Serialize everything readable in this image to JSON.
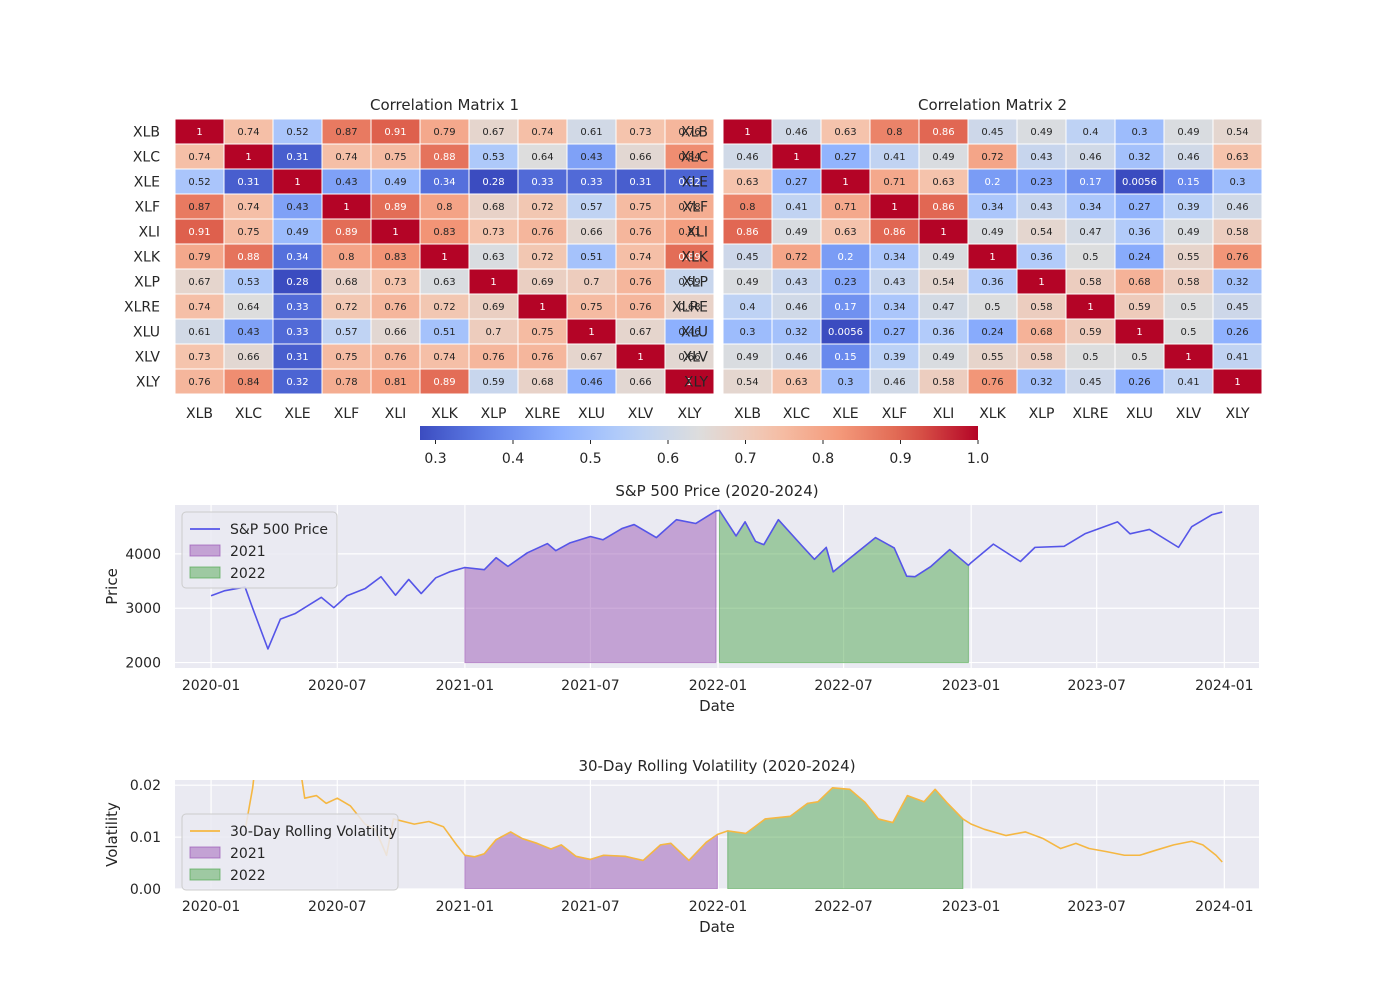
{
  "chart_data": [
    {
      "type": "heatmap",
      "title": "Correlation Matrix 1",
      "labels": [
        "XLB",
        "XLC",
        "XLE",
        "XLF",
        "XLI",
        "XLK",
        "XLP",
        "XLRE",
        "XLU",
        "XLV",
        "XLY"
      ],
      "values": [
        [
          1,
          0.74,
          0.52,
          0.87,
          0.91,
          0.79,
          0.67,
          0.74,
          0.61,
          0.73,
          0.76
        ],
        [
          0.74,
          1,
          0.31,
          0.74,
          0.75,
          0.88,
          0.53,
          0.64,
          0.43,
          0.66,
          0.84
        ],
        [
          0.52,
          0.31,
          1,
          0.43,
          0.49,
          0.34,
          0.28,
          0.33,
          0.33,
          0.31,
          0.32
        ],
        [
          0.87,
          0.74,
          0.43,
          1,
          0.89,
          0.8,
          0.68,
          0.72,
          0.57,
          0.75,
          0.78
        ],
        [
          0.91,
          0.75,
          0.49,
          0.89,
          1,
          0.83,
          0.73,
          0.76,
          0.66,
          0.76,
          0.81
        ],
        [
          0.79,
          0.88,
          0.34,
          0.8,
          0.83,
          1,
          0.63,
          0.72,
          0.51,
          0.74,
          0.89
        ],
        [
          0.67,
          0.53,
          0.28,
          0.68,
          0.73,
          0.63,
          1,
          0.69,
          0.7,
          0.76,
          0.59
        ],
        [
          0.74,
          0.64,
          0.33,
          0.72,
          0.76,
          0.72,
          0.69,
          1,
          0.75,
          0.76,
          0.68
        ],
        [
          0.61,
          0.43,
          0.33,
          0.57,
          0.66,
          0.51,
          0.7,
          0.75,
          1,
          0.67,
          0.46
        ],
        [
          0.73,
          0.66,
          0.31,
          0.75,
          0.76,
          0.74,
          0.76,
          0.76,
          0.67,
          1,
          0.66
        ],
        [
          0.76,
          0.84,
          0.32,
          0.78,
          0.81,
          0.89,
          0.59,
          0.68,
          0.46,
          0.66,
          1
        ]
      ],
      "colormap": "coolwarm",
      "vmin": 0.28,
      "vmax": 1.0
    },
    {
      "type": "heatmap",
      "title": "Correlation Matrix 2",
      "labels": [
        "XLB",
        "XLC",
        "XLE",
        "XLF",
        "XLI",
        "XLK",
        "XLP",
        "XLRE",
        "XLU",
        "XLV",
        "XLY"
      ],
      "values": [
        [
          1,
          0.46,
          0.63,
          0.8,
          0.86,
          0.45,
          0.49,
          0.4,
          0.3,
          0.49,
          0.54
        ],
        [
          0.46,
          1,
          0.27,
          0.41,
          0.49,
          0.72,
          0.43,
          0.46,
          0.32,
          0.46,
          0.63
        ],
        [
          0.63,
          0.27,
          1,
          0.71,
          0.63,
          0.2,
          0.23,
          0.17,
          0.0056,
          0.15,
          0.3
        ],
        [
          0.8,
          0.41,
          0.71,
          1,
          0.86,
          0.34,
          0.43,
          0.34,
          0.27,
          0.39,
          0.46
        ],
        [
          0.86,
          0.49,
          0.63,
          0.86,
          1,
          0.49,
          0.54,
          0.47,
          0.36,
          0.49,
          0.58
        ],
        [
          0.45,
          0.72,
          0.2,
          0.34,
          0.49,
          1,
          0.36,
          0.5,
          0.24,
          0.55,
          0.76
        ],
        [
          0.49,
          0.43,
          0.23,
          0.43,
          0.54,
          0.36,
          1,
          0.58,
          0.68,
          0.58,
          0.32
        ],
        [
          0.4,
          0.46,
          0.17,
          0.34,
          0.47,
          0.5,
          0.58,
          1,
          0.59,
          0.5,
          0.45
        ],
        [
          0.3,
          0.32,
          0.0056,
          0.27,
          0.36,
          0.24,
          0.68,
          0.59,
          1,
          0.5,
          0.26
        ],
        [
          0.49,
          0.46,
          0.15,
          0.39,
          0.49,
          0.55,
          0.58,
          0.5,
          0.5,
          1,
          0.41
        ],
        [
          0.54,
          0.63,
          0.3,
          0.46,
          0.58,
          0.76,
          0.32,
          0.45,
          0.26,
          0.41,
          1
        ]
      ],
      "colormap": "coolwarm",
      "vmin": 0.0056,
      "vmax": 1.0
    },
    {
      "type": "colorbar",
      "colormap": "coolwarm",
      "range": [
        0.28,
        1.0
      ],
      "ticks": [
        0.3,
        0.4,
        0.5,
        0.6,
        0.7,
        0.8,
        0.9,
        1.0
      ]
    },
    {
      "type": "area",
      "title": "S&P 500 Price (2020-2024)",
      "xlabel": "Date",
      "ylabel": "Price",
      "xlim": [
        "2019-11-10",
        "2024-02-20"
      ],
      "ylim": [
        1900,
        4900
      ],
      "xticks": [
        "2020-01",
        "2020-07",
        "2021-01",
        "2021-07",
        "2022-01",
        "2022-07",
        "2023-01",
        "2023-07",
        "2024-01"
      ],
      "yticks": [
        2000,
        3000,
        4000
      ],
      "grid": true,
      "legend": "upper-left",
      "fill_baseline": 2000,
      "series": [
        {
          "name": "S&P 500 Price",
          "color": "#5555e8",
          "points": [
            [
              "2020-01-01",
              3230
            ],
            [
              "2020-01-20",
              3320
            ],
            [
              "2020-02-19",
              3390
            ],
            [
              "2020-03-01",
              3000
            ],
            [
              "2020-03-23",
              2250
            ],
            [
              "2020-04-10",
              2800
            ],
            [
              "2020-05-01",
              2900
            ],
            [
              "2020-06-08",
              3200
            ],
            [
              "2020-06-26",
              3010
            ],
            [
              "2020-07-15",
              3230
            ],
            [
              "2020-08-10",
              3360
            ],
            [
              "2020-09-02",
              3580
            ],
            [
              "2020-09-23",
              3240
            ],
            [
              "2020-10-12",
              3530
            ],
            [
              "2020-10-30",
              3270
            ],
            [
              "2020-11-20",
              3560
            ],
            [
              "2020-12-10",
              3670
            ],
            [
              "2021-01-01",
              3750
            ],
            [
              "2021-01-29",
              3710
            ],
            [
              "2021-02-15",
              3930
            ],
            [
              "2021-03-04",
              3770
            ],
            [
              "2021-04-01",
              4020
            ],
            [
              "2021-04-30",
              4190
            ],
            [
              "2021-05-12",
              4060
            ],
            [
              "2021-06-01",
              4200
            ],
            [
              "2021-07-01",
              4320
            ],
            [
              "2021-07-19",
              4260
            ],
            [
              "2021-08-16",
              4470
            ],
            [
              "2021-09-02",
              4540
            ],
            [
              "2021-10-04",
              4300
            ],
            [
              "2021-11-02",
              4630
            ],
            [
              "2021-11-30",
              4560
            ],
            [
              "2021-12-29",
              4790
            ],
            [
              "2022-01-03",
              4800
            ],
            [
              "2022-01-27",
              4330
            ],
            [
              "2022-02-09",
              4590
            ],
            [
              "2022-02-24",
              4230
            ],
            [
              "2022-03-08",
              4170
            ],
            [
              "2022-03-29",
              4630
            ],
            [
              "2022-05-02",
              4150
            ],
            [
              "2022-05-20",
              3900
            ],
            [
              "2022-06-06",
              4120
            ],
            [
              "2022-06-16",
              3670
            ],
            [
              "2022-07-08",
              3900
            ],
            [
              "2022-08-16",
              4300
            ],
            [
              "2022-09-12",
              4110
            ],
            [
              "2022-09-30",
              3590
            ],
            [
              "2022-10-12",
              3580
            ],
            [
              "2022-11-04",
              3770
            ],
            [
              "2022-12-01",
              4080
            ],
            [
              "2022-12-28",
              3790
            ],
            [
              "2023-01-01",
              3840
            ],
            [
              "2023-02-02",
              4180
            ],
            [
              "2023-03-13",
              3860
            ],
            [
              "2023-04-03",
              4120
            ],
            [
              "2023-05-15",
              4140
            ],
            [
              "2023-06-14",
              4370
            ],
            [
              "2023-07-31",
              4590
            ],
            [
              "2023-08-18",
              4370
            ],
            [
              "2023-09-15",
              4450
            ],
            [
              "2023-10-27",
              4120
            ],
            [
              "2023-11-15",
              4500
            ],
            [
              "2023-12-14",
              4720
            ],
            [
              "2023-12-29",
              4770
            ]
          ]
        }
      ],
      "fills": [
        {
          "name": "2021",
          "color": "#9b59b6",
          "x0": "2021-01-01",
          "x1": "2021-12-31"
        },
        {
          "name": "2022",
          "color": "#52a852",
          "x0": "2022-01-01",
          "x1": "2022-12-31"
        }
      ]
    },
    {
      "type": "area",
      "title": "30-Day Rolling Volatility (2020-2024)",
      "xlabel": "Date",
      "ylabel": "Volatility",
      "xlim": [
        "2019-11-10",
        "2024-02-20"
      ],
      "ylim": [
        0,
        0.021
      ],
      "xticks": [
        "2020-01",
        "2020-07",
        "2021-01",
        "2021-07",
        "2022-01",
        "2022-07",
        "2023-01",
        "2023-07",
        "2024-01"
      ],
      "yticks": [
        "0.00",
        "0.01",
        "0.02"
      ],
      "grid": true,
      "legend": "center-left",
      "fill_baseline": 0,
      "series": [
        {
          "name": "30-Day Rolling Volatility",
          "color": "#f5b742",
          "points": [
            [
              "2020-02-20",
              0.012
            ],
            [
              "2020-03-01",
              0.0195
            ],
            [
              "2020-03-10",
              0.03
            ],
            [
              "2020-05-01",
              0.03
            ],
            [
              "2020-05-15",
              0.0175
            ],
            [
              "2020-06-01",
              0.018
            ],
            [
              "2020-06-15",
              0.0165
            ],
            [
              "2020-07-01",
              0.0175
            ],
            [
              "2020-07-20",
              0.016
            ],
            [
              "2020-08-10",
              0.0125
            ],
            [
              "2020-08-25",
              0.0115
            ],
            [
              "2020-09-10",
              0.0065
            ],
            [
              "2020-09-20",
              0.0135
            ],
            [
              "2020-10-20",
              0.0125
            ],
            [
              "2020-11-10",
              0.013
            ],
            [
              "2020-12-01",
              0.012
            ],
            [
              "2020-12-20",
              0.0085
            ],
            [
              "2021-01-01",
              0.0065
            ],
            [
              "2021-01-15",
              0.0062
            ],
            [
              "2021-01-29",
              0.0068
            ],
            [
              "2021-02-15",
              0.0095
            ],
            [
              "2021-03-08",
              0.011
            ],
            [
              "2021-03-25",
              0.0097
            ],
            [
              "2021-04-15",
              0.0088
            ],
            [
              "2021-05-05",
              0.0077
            ],
            [
              "2021-05-20",
              0.0085
            ],
            [
              "2021-06-10",
              0.0063
            ],
            [
              "2021-07-01",
              0.0057
            ],
            [
              "2021-07-20",
              0.0065
            ],
            [
              "2021-08-20",
              0.0063
            ],
            [
              "2021-09-15",
              0.0055
            ],
            [
              "2021-10-10",
              0.0085
            ],
            [
              "2021-10-25",
              0.0088
            ],
            [
              "2021-11-20",
              0.0055
            ],
            [
              "2021-12-15",
              0.009
            ],
            [
              "2021-12-31",
              0.0105
            ],
            [
              "2022-01-15",
              0.0112
            ],
            [
              "2022-02-10",
              0.0107
            ],
            [
              "2022-03-10",
              0.0135
            ],
            [
              "2022-04-15",
              0.014
            ],
            [
              "2022-05-10",
              0.0165
            ],
            [
              "2022-05-25",
              0.0168
            ],
            [
              "2022-06-15",
              0.0195
            ],
            [
              "2022-07-10",
              0.0192
            ],
            [
              "2022-08-01",
              0.0167
            ],
            [
              "2022-08-20",
              0.0135
            ],
            [
              "2022-09-10",
              0.0128
            ],
            [
              "2022-10-01",
              0.018
            ],
            [
              "2022-10-25",
              0.0168
            ],
            [
              "2022-11-10",
              0.0192
            ],
            [
              "2022-11-28",
              0.0165
            ],
            [
              "2022-12-20",
              0.0135
            ],
            [
              "2023-01-01",
              0.0125
            ],
            [
              "2023-01-20",
              0.0115
            ],
            [
              "2023-02-20",
              0.0103
            ],
            [
              "2023-03-20",
              0.011
            ],
            [
              "2023-04-15",
              0.0097
            ],
            [
              "2023-05-10",
              0.0078
            ],
            [
              "2023-06-01",
              0.0088
            ],
            [
              "2023-06-20",
              0.0078
            ],
            [
              "2023-07-15",
              0.0072
            ],
            [
              "2023-08-10",
              0.0065
            ],
            [
              "2023-09-01",
              0.0065
            ],
            [
              "2023-09-25",
              0.0075
            ],
            [
              "2023-10-20",
              0.0085
            ],
            [
              "2023-11-15",
              0.0092
            ],
            [
              "2023-12-01",
              0.0085
            ],
            [
              "2023-12-20",
              0.0065
            ],
            [
              "2023-12-29",
              0.0052
            ]
          ]
        }
      ],
      "fills": [
        {
          "name": "2021",
          "color": "#9b59b6",
          "x0": "2021-01-01",
          "x1": "2021-12-31"
        },
        {
          "name": "2022",
          "color": "#52a852",
          "x0": "2022-01-01",
          "x1": "2022-12-31"
        }
      ]
    }
  ]
}
